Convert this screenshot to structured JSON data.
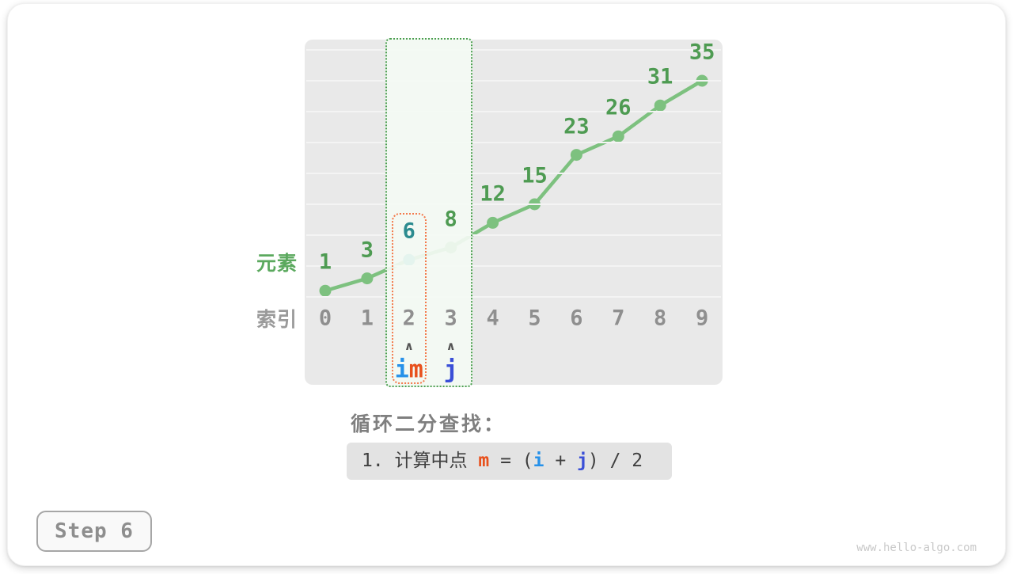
{
  "card": {
    "step_label": "Step 6",
    "watermark": "www.hello-algo.com"
  },
  "chart_data": {
    "type": "line",
    "title": "",
    "x_axis_label": "索引",
    "y_axis_label": "元素",
    "categories": [
      0,
      1,
      2,
      3,
      4,
      5,
      6,
      7,
      8,
      9
    ],
    "values": [
      1,
      3,
      6,
      8,
      12,
      15,
      23,
      26,
      31,
      35
    ],
    "ylim": [
      0,
      41
    ],
    "gridline_values": [
      0,
      5,
      10,
      15,
      20,
      25,
      30,
      35,
      40
    ],
    "grid": true,
    "legend": "none",
    "highlight": {
      "search_range": {
        "from_index": 2,
        "to_index": 3
      },
      "mid_index": 2,
      "mid_value": 6,
      "pointer_caret_glyph": "∧",
      "pointer_groups": [
        {
          "index": 2,
          "labels": [
            {
              "text": "i",
              "color_key": "pointer_i"
            },
            {
              "text": "m",
              "color_key": "pointer_m"
            }
          ]
        },
        {
          "index": 3,
          "labels": [
            {
              "text": "j",
              "color_key": "pointer_j"
            }
          ]
        }
      ]
    },
    "colors": {
      "series_line": "#7dc17f",
      "series_dot": "#7dc17f",
      "mid_dot": "#3bafad",
      "value_label": "#4e9b52",
      "mid_value_label": "#2b8b8f",
      "index_label": "#8f8f8f",
      "axis_label_y": "#5ba95e",
      "axis_label_x": "#9a9a9a",
      "range_border": "#4c9f50",
      "range_fill": "rgba(243,250,243,0.92)",
      "mid_border": "#f37a4c",
      "caret": "#555555",
      "pointer_i": "#2691e9",
      "pointer_m": "#e8511d",
      "pointer_j": "#3a4fd7",
      "grid_bg": "#e9e9e9",
      "gridline": "#f4f4f4"
    }
  },
  "caption": {
    "title": "循环二分查找：",
    "formula": {
      "prefix": "1. 计算中点 ",
      "var_m": "m",
      "mid1": " = (",
      "var_i": "i",
      "mid2": " + ",
      "var_j": "j",
      "suffix": ") / 2"
    }
  }
}
